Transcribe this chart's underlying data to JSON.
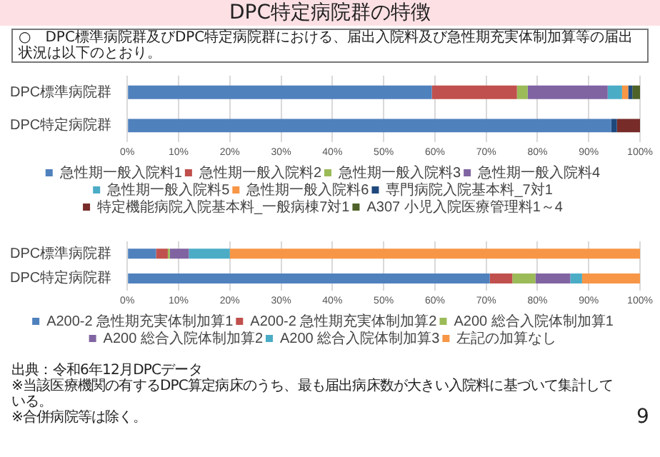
{
  "chart_data": [
    {
      "type": "bar",
      "orientation": "horizontal",
      "stacked": true,
      "title": "DPC特定病院群の特徴",
      "subtitle": "○　DPC標準病院群及びDPC特定病院群における、届出入院料及び急性期充実体制加算等の届出状況は以下のとおり。",
      "categories": [
        "DPC標準病院群",
        "DPC特定病院群"
      ],
      "series": [
        {
          "name": "急性期一般入院料1",
          "color": "#4f81bd",
          "values": [
            59.4,
            94.4
          ]
        },
        {
          "name": "急性期一般入院料2",
          "color": "#c0504d",
          "values": [
            16.6,
            0
          ]
        },
        {
          "name": "急性期一般入院料3",
          "color": "#9bbb59",
          "values": [
            2.1,
            0
          ]
        },
        {
          "name": "急性期一般入院料4",
          "color": "#8064a2",
          "values": [
            15.6,
            0
          ]
        },
        {
          "name": "急性期一般入院料5",
          "color": "#4bacc6",
          "values": [
            2.8,
            0
          ]
        },
        {
          "name": "急性期一般入院料6",
          "color": "#f79646",
          "values": [
            1.2,
            0
          ]
        },
        {
          "name": "専門病院入院基本料_7対1",
          "color": "#1f497d",
          "values": [
            0.8,
            1.1
          ]
        },
        {
          "name": "特定機能病院入院基本料_一般病棟7対1",
          "color": "#772c2a",
          "values": [
            0,
            4.5
          ]
        },
        {
          "name": "A307 小児入院医療管理料1～4",
          "color": "#4f6228",
          "values": [
            1.5,
            0
          ]
        }
      ],
      "xlim": [
        0,
        100
      ],
      "xticks": [
        {
          "value": 0,
          "label": "0%"
        },
        {
          "value": 10,
          "label": "10%"
        },
        {
          "value": 20,
          "label": "20%"
        },
        {
          "value": 30,
          "label": "30%"
        },
        {
          "value": 40,
          "label": "40%"
        },
        {
          "value": 50,
          "label": "50%"
        },
        {
          "value": 60,
          "label": "60%"
        },
        {
          "value": 70,
          "label": "70%"
        },
        {
          "value": 80,
          "label": "80%"
        },
        {
          "value": 90,
          "label": "90%"
        },
        {
          "value": 100,
          "label": "100%"
        }
      ],
      "grid": "x",
      "legend": "bottom"
    },
    {
      "type": "bar",
      "orientation": "horizontal",
      "stacked": true,
      "categories": [
        "DPC標準病院群",
        "DPC特定病院群"
      ],
      "series": [
        {
          "name": "A200-2 急性期充実体制加算1",
          "color": "#4f81bd",
          "values": [
            5.6,
            70.7
          ]
        },
        {
          "name": "A200-2 急性期充実体制加算2",
          "color": "#c0504d",
          "values": [
            2.3,
            4.4
          ]
        },
        {
          "name": "A200 総合入院体制加算1",
          "color": "#9bbb59",
          "values": [
            0.4,
            4.5
          ]
        },
        {
          "name": "A200 総合入院体制加算2",
          "color": "#8064a2",
          "values": [
            3.7,
            6.8
          ]
        },
        {
          "name": "A200 総合入院体制加算3",
          "color": "#4bacc6",
          "values": [
            8.0,
            2.3
          ]
        },
        {
          "name": "左記の加算なし",
          "color": "#f79646",
          "values": [
            80.0,
            11.3
          ]
        }
      ],
      "xlim": [
        0,
        100
      ],
      "xticks": [
        {
          "value": 0,
          "label": "0%"
        },
        {
          "value": 10,
          "label": "10%"
        },
        {
          "value": 20,
          "label": "20%"
        },
        {
          "value": 30,
          "label": "30%"
        },
        {
          "value": 40,
          "label": "40%"
        },
        {
          "value": 50,
          "label": "50%"
        },
        {
          "value": 60,
          "label": "60%"
        },
        {
          "value": 70,
          "label": "70%"
        },
        {
          "value": 80,
          "label": "80%"
        },
        {
          "value": 90,
          "label": "90%"
        },
        {
          "value": 100,
          "label": "100%"
        }
      ],
      "grid": "x",
      "legend": "bottom",
      "annotations": [
        "出典：令和6年12月DPCデータ",
        "※当該医療機関の有するDPC算定病床のうち、最も届出病床数が大きい入院料に基づいて集計している。",
        "※合併病院等は除く。",
        "9"
      ]
    }
  ]
}
